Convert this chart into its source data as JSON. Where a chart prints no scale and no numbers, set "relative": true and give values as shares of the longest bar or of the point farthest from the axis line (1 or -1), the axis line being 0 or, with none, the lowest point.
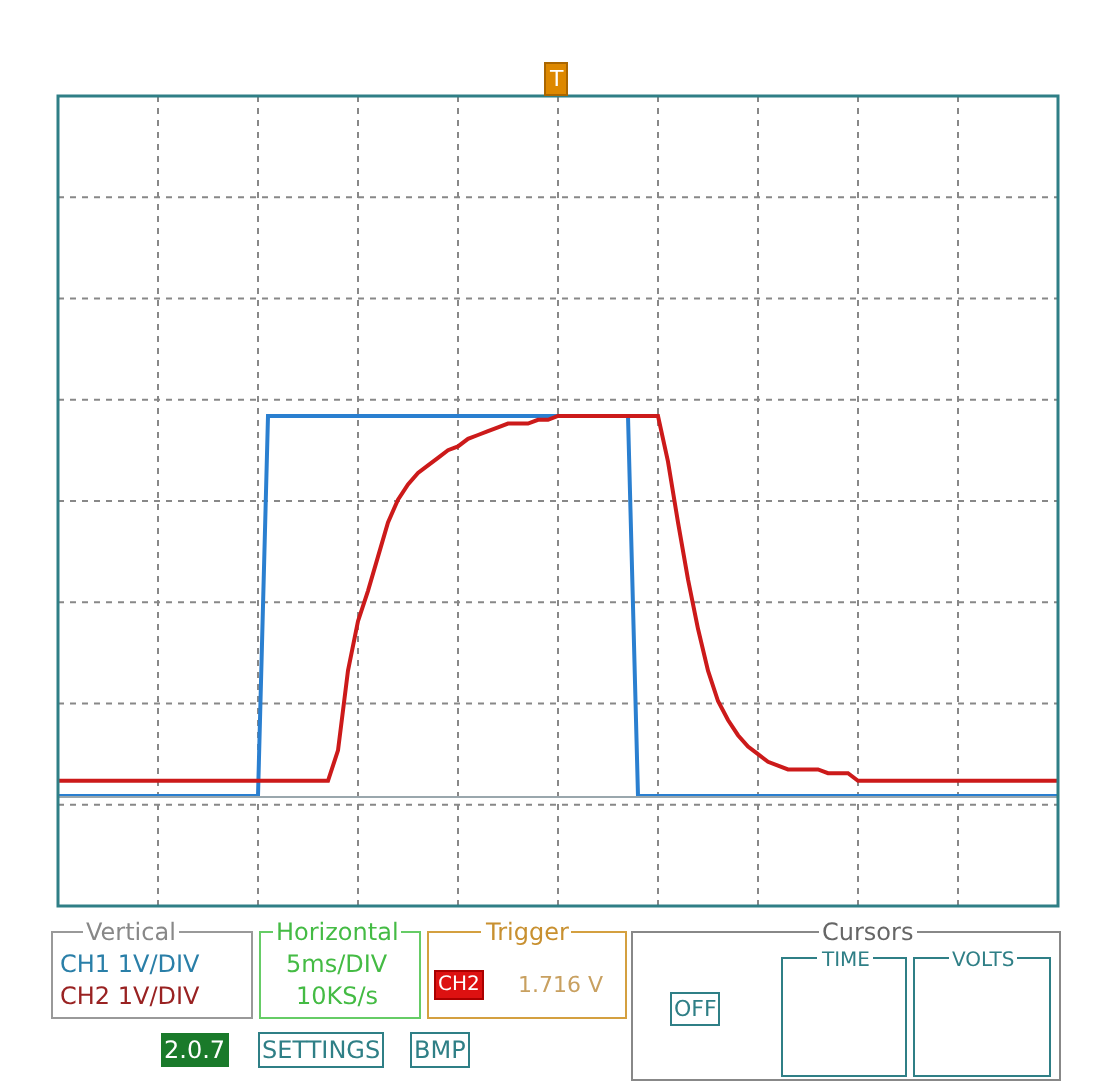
{
  "chart_data": {
    "type": "line",
    "relative": true,
    "grid": true,
    "line_style": "solid",
    "categories": [
      null,
      null,
      null,
      null,
      null,
      null,
      null,
      null,
      null,
      null,
      null,
      null,
      null,
      null,
      null,
      null,
      null,
      null,
      null,
      null,
      null,
      null,
      null,
      null,
      null,
      null,
      null,
      null,
      null,
      null,
      null,
      null,
      null,
      null,
      null,
      null,
      null,
      null,
      null,
      null,
      null,
      null,
      null,
      null,
      null,
      null,
      null,
      null,
      null,
      null,
      null,
      null,
      null,
      null,
      null,
      null,
      null,
      null,
      null,
      null,
      null,
      null,
      null,
      null,
      null,
      null,
      null,
      null,
      null,
      null,
      null,
      null,
      null,
      null,
      null,
      null,
      null,
      null,
      null,
      null,
      null,
      null,
      null,
      null,
      null,
      null,
      null,
      null,
      null,
      null,
      null,
      null,
      null,
      null,
      null,
      null,
      null,
      null,
      null,
      null,
      null
    ],
    "series": [
      {
        "color": "#2a7fd0",
        "values": [
          0,
          0,
          0,
          0,
          0,
          0,
          0,
          0,
          0,
          0,
          0,
          0,
          0,
          0,
          0,
          0,
          0,
          0,
          0,
          0,
          0,
          1,
          1,
          1,
          1,
          1,
          1,
          1,
          1,
          1,
          1,
          1,
          1,
          1,
          1,
          1,
          1,
          1,
          1,
          1,
          1,
          1,
          1,
          1,
          1,
          1,
          1,
          1,
          1,
          1,
          1,
          null,
          null,
          null,
          null,
          null,
          null,
          1,
          0,
          0,
          0,
          0,
          0,
          0,
          0,
          0,
          0,
          0,
          0,
          0,
          0,
          0,
          0,
          0,
          0,
          0,
          0,
          0,
          0,
          0,
          0,
          0,
          0,
          0,
          0,
          0,
          0,
          0,
          0,
          0,
          0,
          0,
          0,
          0,
          0,
          0,
          0,
          0,
          0,
          0,
          0
        ]
      },
      {
        "color": "#cc1a1a",
        "values": [
          0.04,
          0.04,
          0.04,
          0.04,
          0.04,
          0.04,
          0.04,
          0.04,
          0.04,
          0.04,
          0.04,
          0.04,
          0.04,
          0.04,
          0.04,
          0.04,
          0.04,
          0.04,
          0.04,
          0.04,
          0.04,
          0.04,
          0.04,
          0.04,
          0.04,
          0.04,
          0.04,
          0.04,
          0.12,
          0.33,
          0.46,
          0.54,
          0.63,
          0.72,
          0.78,
          0.82,
          0.85,
          0.87,
          0.89,
          0.91,
          0.92,
          0.94,
          0.95,
          0.96,
          0.97,
          0.98,
          0.98,
          0.98,
          0.99,
          0.99,
          1,
          1,
          1,
          1,
          1,
          1,
          1,
          1,
          1,
          1,
          1,
          0.88,
          0.72,
          0.57,
          0.44,
          0.33,
          0.25,
          0.2,
          0.16,
          0.13,
          0.11,
          0.09,
          0.08,
          0.07,
          0.07,
          0.07,
          0.07,
          0.06,
          0.06,
          0.06,
          0.04,
          0.04,
          0.04,
          0.04,
          0.04,
          0.04,
          0.04,
          0.04,
          0.04,
          0.04,
          0.04,
          0.04,
          0.04,
          0.04,
          0.04,
          0.04,
          0.04,
          0.04,
          0.04,
          0.04,
          0.04
        ]
      }
    ],
    "annotations": [
      "Vertical",
      "CH1 1V/DIV",
      "CH2 1V/DIV",
      "Horizontal",
      "5ms/DIV",
      "10KS/s",
      "Trigger",
      "CH2",
      "1.716 V",
      "Cursors",
      "TIME",
      "VOLTS",
      "OFF",
      "2.0.7",
      "SETTINGS",
      "BMP",
      "T"
    ]
  }
}
